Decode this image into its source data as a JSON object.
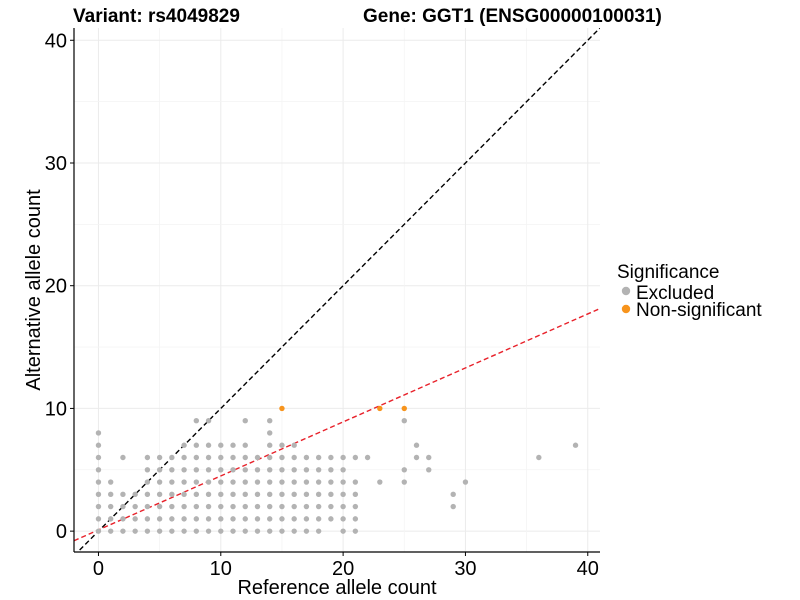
{
  "chart_data": {
    "type": "scatter",
    "title_left": "Variant: rs4049829",
    "title_right": "Gene: GGT1 (ENSG00000100031)",
    "xlabel": "Reference allele count",
    "ylabel": "Alternative allele count",
    "xlim": [
      -2,
      41
    ],
    "ylim": [
      -1.7,
      41
    ],
    "x_ticks": [
      0,
      10,
      20,
      30,
      40
    ],
    "y_ticks": [
      0,
      10,
      20,
      30,
      40
    ],
    "grid": true,
    "legend": {
      "title": "Significance",
      "position": "right",
      "entries": [
        {
          "label": "Excluded",
          "color": "#b3b3b3"
        },
        {
          "label": "Non-significant",
          "color": "#f7941d"
        }
      ]
    },
    "lines": [
      {
        "name": "identity",
        "slope": 1,
        "intercept": 0,
        "color": "#000000",
        "dash": true
      },
      {
        "name": "expected ratio",
        "slope": 0.44,
        "intercept": 0.1,
        "color": "#e8212a",
        "dash": true
      }
    ],
    "series": [
      {
        "name": "Excluded",
        "color": "#b3b3b3",
        "points": [
          [
            0,
            0
          ],
          [
            0,
            1
          ],
          [
            0,
            2
          ],
          [
            0,
            3
          ],
          [
            0,
            4
          ],
          [
            0,
            5
          ],
          [
            0,
            6
          ],
          [
            0,
            7
          ],
          [
            0,
            8
          ],
          [
            1,
            0
          ],
          [
            1,
            1
          ],
          [
            1,
            2
          ],
          [
            1,
            3
          ],
          [
            1,
            4
          ],
          [
            2,
            0
          ],
          [
            2,
            1
          ],
          [
            2,
            2
          ],
          [
            2,
            3
          ],
          [
            2,
            6
          ],
          [
            3,
            0
          ],
          [
            3,
            1
          ],
          [
            3,
            2
          ],
          [
            3,
            3
          ],
          [
            4,
            0
          ],
          [
            4,
            1
          ],
          [
            4,
            2
          ],
          [
            4,
            3
          ],
          [
            4,
            4
          ],
          [
            4,
            5
          ],
          [
            4,
            6
          ],
          [
            5,
            0
          ],
          [
            5,
            1
          ],
          [
            5,
            2
          ],
          [
            5,
            3
          ],
          [
            5,
            4
          ],
          [
            5,
            5
          ],
          [
            5,
            6
          ],
          [
            6,
            0
          ],
          [
            6,
            1
          ],
          [
            6,
            2
          ],
          [
            6,
            3
          ],
          [
            6,
            4
          ],
          [
            6,
            5
          ],
          [
            6,
            6
          ],
          [
            7,
            0
          ],
          [
            7,
            1
          ],
          [
            7,
            2
          ],
          [
            7,
            3
          ],
          [
            7,
            4
          ],
          [
            7,
            5
          ],
          [
            7,
            6
          ],
          [
            7,
            7
          ],
          [
            8,
            0
          ],
          [
            8,
            1
          ],
          [
            8,
            2
          ],
          [
            8,
            3
          ],
          [
            8,
            4
          ],
          [
            8,
            5
          ],
          [
            8,
            6
          ],
          [
            8,
            7
          ],
          [
            8,
            9
          ],
          [
            9,
            0
          ],
          [
            9,
            1
          ],
          [
            9,
            2
          ],
          [
            9,
            3
          ],
          [
            9,
            4
          ],
          [
            9,
            5
          ],
          [
            9,
            6
          ],
          [
            9,
            7
          ],
          [
            9,
            9
          ],
          [
            10,
            0
          ],
          [
            10,
            1
          ],
          [
            10,
            2
          ],
          [
            10,
            3
          ],
          [
            10,
            4
          ],
          [
            10,
            5
          ],
          [
            10,
            6
          ],
          [
            10,
            7
          ],
          [
            11,
            0
          ],
          [
            11,
            1
          ],
          [
            11,
            2
          ],
          [
            11,
            3
          ],
          [
            11,
            4
          ],
          [
            11,
            5
          ],
          [
            11,
            6
          ],
          [
            11,
            7
          ],
          [
            12,
            0
          ],
          [
            12,
            1
          ],
          [
            12,
            2
          ],
          [
            12,
            3
          ],
          [
            12,
            4
          ],
          [
            12,
            5
          ],
          [
            12,
            6
          ],
          [
            12,
            7
          ],
          [
            12,
            9
          ],
          [
            13,
            0
          ],
          [
            13,
            1
          ],
          [
            13,
            2
          ],
          [
            13,
            3
          ],
          [
            13,
            4
          ],
          [
            13,
            5
          ],
          [
            13,
            6
          ],
          [
            14,
            0
          ],
          [
            14,
            1
          ],
          [
            14,
            2
          ],
          [
            14,
            3
          ],
          [
            14,
            4
          ],
          [
            14,
            5
          ],
          [
            14,
            6
          ],
          [
            14,
            7
          ],
          [
            14,
            8
          ],
          [
            14,
            9
          ],
          [
            15,
            0
          ],
          [
            15,
            1
          ],
          [
            15,
            2
          ],
          [
            15,
            3
          ],
          [
            15,
            4
          ],
          [
            15,
            5
          ],
          [
            15,
            6
          ],
          [
            15,
            7
          ],
          [
            16,
            0
          ],
          [
            16,
            1
          ],
          [
            16,
            2
          ],
          [
            16,
            3
          ],
          [
            16,
            4
          ],
          [
            16,
            5
          ],
          [
            16,
            6
          ],
          [
            16,
            7
          ],
          [
            17,
            0
          ],
          [
            17,
            1
          ],
          [
            17,
            2
          ],
          [
            17,
            3
          ],
          [
            17,
            4
          ],
          [
            17,
            5
          ],
          [
            17,
            6
          ],
          [
            18,
            0
          ],
          [
            18,
            1
          ],
          [
            18,
            2
          ],
          [
            18,
            3
          ],
          [
            18,
            4
          ],
          [
            18,
            5
          ],
          [
            18,
            6
          ],
          [
            19,
            1
          ],
          [
            19,
            2
          ],
          [
            19,
            3
          ],
          [
            19,
            4
          ],
          [
            19,
            5
          ],
          [
            19,
            6
          ],
          [
            20,
            0
          ],
          [
            20,
            1
          ],
          [
            20,
            2
          ],
          [
            20,
            3
          ],
          [
            20,
            4
          ],
          [
            20,
            5
          ],
          [
            20,
            6
          ],
          [
            21,
            0
          ],
          [
            21,
            1
          ],
          [
            21,
            2
          ],
          [
            21,
            3
          ],
          [
            21,
            4
          ],
          [
            21,
            6
          ],
          [
            22,
            6
          ],
          [
            23,
            4
          ],
          [
            25,
            4
          ],
          [
            25,
            5
          ],
          [
            25,
            9
          ],
          [
            26,
            6
          ],
          [
            26,
            7
          ],
          [
            27,
            5
          ],
          [
            27,
            6
          ],
          [
            29,
            2
          ],
          [
            29,
            3
          ],
          [
            30,
            4
          ],
          [
            36,
            6
          ],
          [
            39,
            7
          ]
        ]
      },
      {
        "name": "Non-significant",
        "color": "#f7941d",
        "points": [
          [
            15,
            10
          ],
          [
            23,
            10
          ],
          [
            25,
            10
          ]
        ]
      }
    ]
  }
}
